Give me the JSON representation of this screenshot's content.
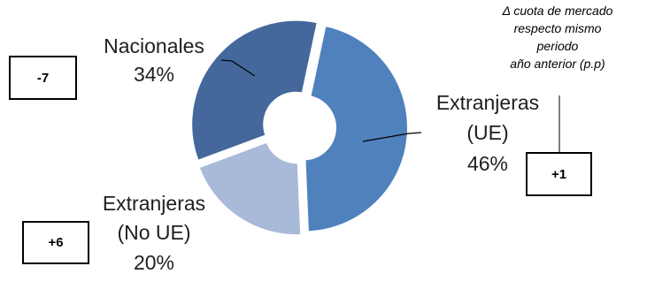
{
  "chart_data": {
    "type": "pie",
    "variant": "doughnut",
    "title": "",
    "slices": [
      {
        "name_lines": [
          "Extranjeras",
          "(UE)"
        ],
        "value": 46,
        "value_label": "46%",
        "color": "#4f81bd",
        "change": "+1"
      },
      {
        "name_lines": [
          "Extranjeras",
          "(No UE)"
        ],
        "value": 20,
        "value_label": "20%",
        "color": "#a9b9d8",
        "change": "+6"
      },
      {
        "name_lines": [
          "Nacionales"
        ],
        "value": 34,
        "value_label": "34%",
        "color": "#44689c",
        "change": "-7"
      }
    ]
  },
  "note": {
    "lines": [
      "Δ cuota de mercado",
      "respecto mismo",
      "periodo",
      "año anterior (p.p)"
    ]
  }
}
